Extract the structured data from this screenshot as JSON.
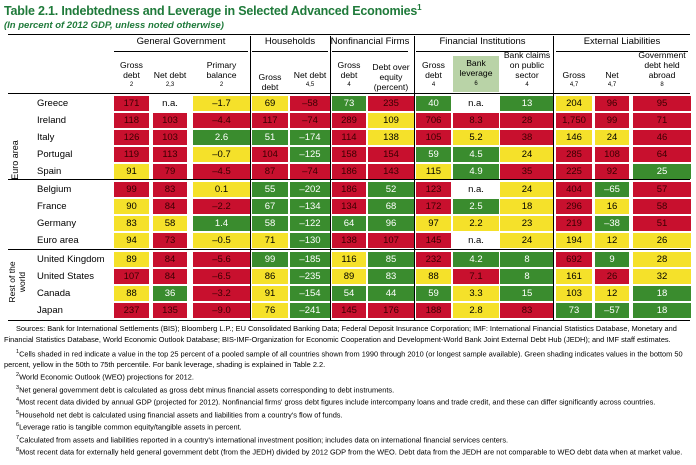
{
  "table": {
    "title": "Table 2.1. Indebtedness and Leverage in Selected Advanced Economies",
    "title_note": "1",
    "subtitle": "(In percent of 2012 GDP, unless noted otherwise)",
    "groups": [
      "General Government",
      "Households",
      "Nonfinancial Firms",
      "Financial Institutions",
      "External Liabilities"
    ],
    "columns": [
      {
        "label": "Gross debt",
        "note": "2"
      },
      {
        "label": "Net debt",
        "note": "2,3"
      },
      {
        "label": "Primary balance",
        "note": "2"
      },
      {
        "label": "Gross debt",
        "note": ""
      },
      {
        "label": "Net debt",
        "note": "4,5"
      },
      {
        "label": "Gross debt",
        "note": "4"
      },
      {
        "label": "Debt over equity (percent)",
        "note": ""
      },
      {
        "label": "Gross debt",
        "note": "4"
      },
      {
        "label": "Bank leverage",
        "note": "6"
      },
      {
        "label": "Bank claims on public sector",
        "note": "4"
      },
      {
        "label": "Gross",
        "note": "4,7"
      },
      {
        "label": "Net",
        "note": "4,7"
      },
      {
        "label": "Government debt held abroad",
        "note": "8"
      }
    ],
    "side_labels": {
      "euro": "Euro area",
      "rest": "Rest of the world"
    },
    "rows": [
      {
        "country": "Greece",
        "cells": [
          [
            "171",
            "r"
          ],
          [
            "n.a.",
            "w"
          ],
          [
            "–1.7",
            "y"
          ],
          [
            "69",
            "y"
          ],
          [
            "–58",
            "r"
          ],
          [
            "73",
            "g"
          ],
          [
            "235",
            "r"
          ],
          [
            "40",
            "g"
          ],
          [
            "n.a.",
            "w"
          ],
          [
            "13",
            "g"
          ],
          [
            "204",
            "y"
          ],
          [
            "96",
            "r"
          ],
          [
            "95",
            "r"
          ]
        ]
      },
      {
        "country": "Ireland",
        "cells": [
          [
            "118",
            "r"
          ],
          [
            "103",
            "r"
          ],
          [
            "–4.4",
            "r"
          ],
          [
            "117",
            "r"
          ],
          [
            "–74",
            "r"
          ],
          [
            "289",
            "r"
          ],
          [
            "109",
            "y"
          ],
          [
            "706",
            "r"
          ],
          [
            "8.3",
            "r"
          ],
          [
            "28",
            "r"
          ],
          [
            "1,750",
            "r"
          ],
          [
            "99",
            "r"
          ],
          [
            "71",
            "r"
          ]
        ]
      },
      {
        "country": "Italy",
        "cells": [
          [
            "126",
            "r"
          ],
          [
            "103",
            "r"
          ],
          [
            "2.6",
            "g"
          ],
          [
            "51",
            "g"
          ],
          [
            "–174",
            "g"
          ],
          [
            "114",
            "r"
          ],
          [
            "138",
            "y"
          ],
          [
            "105",
            "r"
          ],
          [
            "5.2",
            "y"
          ],
          [
            "38",
            "r"
          ],
          [
            "146",
            "y"
          ],
          [
            "24",
            "y"
          ],
          [
            "46",
            "r"
          ]
        ]
      },
      {
        "country": "Portugal",
        "cells": [
          [
            "119",
            "r"
          ],
          [
            "113",
            "r"
          ],
          [
            "–0.7",
            "y"
          ],
          [
            "104",
            "r"
          ],
          [
            "–125",
            "g"
          ],
          [
            "158",
            "r"
          ],
          [
            "154",
            "r"
          ],
          [
            "59",
            "g"
          ],
          [
            "4.5",
            "g"
          ],
          [
            "24",
            "y"
          ],
          [
            "285",
            "r"
          ],
          [
            "108",
            "r"
          ],
          [
            "64",
            "r"
          ]
        ]
      },
      {
        "country": "Spain",
        "cells": [
          [
            "91",
            "y"
          ],
          [
            "79",
            "r"
          ],
          [
            "–4.5",
            "r"
          ],
          [
            "87",
            "r"
          ],
          [
            "–74",
            "r"
          ],
          [
            "186",
            "r"
          ],
          [
            "143",
            "r"
          ],
          [
            "115",
            "y"
          ],
          [
            "4.9",
            "g"
          ],
          [
            "35",
            "r"
          ],
          [
            "225",
            "r"
          ],
          [
            "92",
            "r"
          ],
          [
            "25",
            "g"
          ]
        ]
      },
      {
        "country": "Belgium",
        "cells": [
          [
            "99",
            "r"
          ],
          [
            "83",
            "r"
          ],
          [
            "0.1",
            "y"
          ],
          [
            "55",
            "g"
          ],
          [
            "–202",
            "g"
          ],
          [
            "186",
            "r"
          ],
          [
            "52",
            "g"
          ],
          [
            "123",
            "r"
          ],
          [
            "n.a.",
            "w"
          ],
          [
            "24",
            "y"
          ],
          [
            "404",
            "r"
          ],
          [
            "–65",
            "g"
          ],
          [
            "57",
            "r"
          ]
        ]
      },
      {
        "country": "France",
        "cells": [
          [
            "90",
            "y"
          ],
          [
            "84",
            "r"
          ],
          [
            "–2.2",
            "r"
          ],
          [
            "67",
            "g"
          ],
          [
            "–134",
            "g"
          ],
          [
            "134",
            "r"
          ],
          [
            "68",
            "g"
          ],
          [
            "172",
            "r"
          ],
          [
            "2.5",
            "g"
          ],
          [
            "18",
            "y"
          ],
          [
            "296",
            "r"
          ],
          [
            "16",
            "y"
          ],
          [
            "58",
            "r"
          ]
        ]
      },
      {
        "country": "Germany",
        "cells": [
          [
            "83",
            "y"
          ],
          [
            "58",
            "y"
          ],
          [
            "1.4",
            "g"
          ],
          [
            "58",
            "g"
          ],
          [
            "–122",
            "g"
          ],
          [
            "64",
            "g"
          ],
          [
            "96",
            "g"
          ],
          [
            "97",
            "y"
          ],
          [
            "2.2",
            "y"
          ],
          [
            "23",
            "y"
          ],
          [
            "219",
            "r"
          ],
          [
            "–38",
            "g"
          ],
          [
            "51",
            "r"
          ]
        ]
      },
      {
        "country": "Euro area",
        "cells": [
          [
            "94",
            "y"
          ],
          [
            "73",
            "r"
          ],
          [
            "–0.5",
            "y"
          ],
          [
            "71",
            "y"
          ],
          [
            "–130",
            "g"
          ],
          [
            "138",
            "r"
          ],
          [
            "107",
            "r"
          ],
          [
            "145",
            "r"
          ],
          [
            "n.a.",
            "w"
          ],
          [
            "24",
            "y"
          ],
          [
            "194",
            "y"
          ],
          [
            "12",
            "y"
          ],
          [
            "26",
            "y"
          ]
        ]
      },
      {
        "country": "United Kingdom",
        "cells": [
          [
            "89",
            "y"
          ],
          [
            "84",
            "r"
          ],
          [
            "–5.6",
            "r"
          ],
          [
            "99",
            "g"
          ],
          [
            "–185",
            "g"
          ],
          [
            "116",
            "y"
          ],
          [
            "85",
            "g"
          ],
          [
            "232",
            "r"
          ],
          [
            "4.2",
            "g"
          ],
          [
            "8",
            "g"
          ],
          [
            "692",
            "r"
          ],
          [
            "9",
            "g"
          ],
          [
            "28",
            "y"
          ]
        ]
      },
      {
        "country": "United States",
        "cells": [
          [
            "107",
            "r"
          ],
          [
            "84",
            "r"
          ],
          [
            "–6.5",
            "r"
          ],
          [
            "86",
            "y"
          ],
          [
            "–235",
            "g"
          ],
          [
            "89",
            "y"
          ],
          [
            "83",
            "g"
          ],
          [
            "88",
            "y"
          ],
          [
            "7.1",
            "r"
          ],
          [
            "8",
            "g"
          ],
          [
            "161",
            "y"
          ],
          [
            "26",
            "r"
          ],
          [
            "32",
            "y"
          ]
        ]
      },
      {
        "country": "Canada",
        "cells": [
          [
            "88",
            "y"
          ],
          [
            "36",
            "g"
          ],
          [
            "–3.2",
            "r"
          ],
          [
            "91",
            "y"
          ],
          [
            "–154",
            "g"
          ],
          [
            "54",
            "g"
          ],
          [
            "44",
            "g"
          ],
          [
            "59",
            "g"
          ],
          [
            "3.3",
            "y"
          ],
          [
            "15",
            "g"
          ],
          [
            "103",
            "y"
          ],
          [
            "12",
            "y"
          ],
          [
            "18",
            "g"
          ]
        ]
      },
      {
        "country": "Japan",
        "cells": [
          [
            "237",
            "r"
          ],
          [
            "135",
            "r"
          ],
          [
            "–9.0",
            "r"
          ],
          [
            "76",
            "y"
          ],
          [
            "–241",
            "g"
          ],
          [
            "145",
            "r"
          ],
          [
            "176",
            "r"
          ],
          [
            "188",
            "r"
          ],
          [
            "2.8",
            "y"
          ],
          [
            "83",
            "r"
          ],
          [
            "73",
            "g"
          ],
          [
            "–57",
            "g"
          ],
          [
            "18",
            "g"
          ]
        ]
      }
    ]
  },
  "notes": {
    "sources": "Sources: Bank for International Settlements (BIS); Bloomberg L.P.; EU Consolidated Banking Data; Federal Deposit Insurance Corporation; IMF: International Financial Statistics Database, Monetary and Financial Statistics Database, World Economic Outlook Database; BIS-IMF-Organization for Economic Cooperation and Development-World Bank Joint External Debt Hub (JEDH); and IMF staff estimates.",
    "n1": "Cells shaded in red indicate a value in the top 25 percent of a pooled sample of all countries shown from 1990 through 2010 (or longest sample available). Green shading indicates values in the bottom 50 percent, yellow in the 50th to 75th percentile. For bank leverage, shading is explained in Table 2.2.",
    "n2": "World Economic Outlook (WEO) projections for 2012.",
    "n3": "Net general government debt is calculated as gross debt minus financial assets corresponding to debt instruments.",
    "n4": "Most recent data divided by annual GDP (projected for 2012). Nonfinancial firms' gross debt figures include intercompany loans and trade credit, and these can differ significantly across countries.",
    "n5": "Household net debt is calculated using financial assets and liabilities from a country's flow of funds.",
    "n6": "Leverage ratio is tangible common equity/tangible assets in percent.",
    "n7": "Calculated from assets and liabilities reported in a country's international investment position; includes data on international financial services centers.",
    "n8": "Most recent data for externally held general government debt (from the JEDH) divided by 2012 GDP from the WEO. Debt data from the JEDH are not comparable to WEO debt data when at market value."
  },
  "colors": {
    "red": "#c8102e",
    "yellow": "#f5e12a",
    "green": "#3a8c2e",
    "title": "#1f7a3a",
    "highlight": "#b9d3a7"
  }
}
